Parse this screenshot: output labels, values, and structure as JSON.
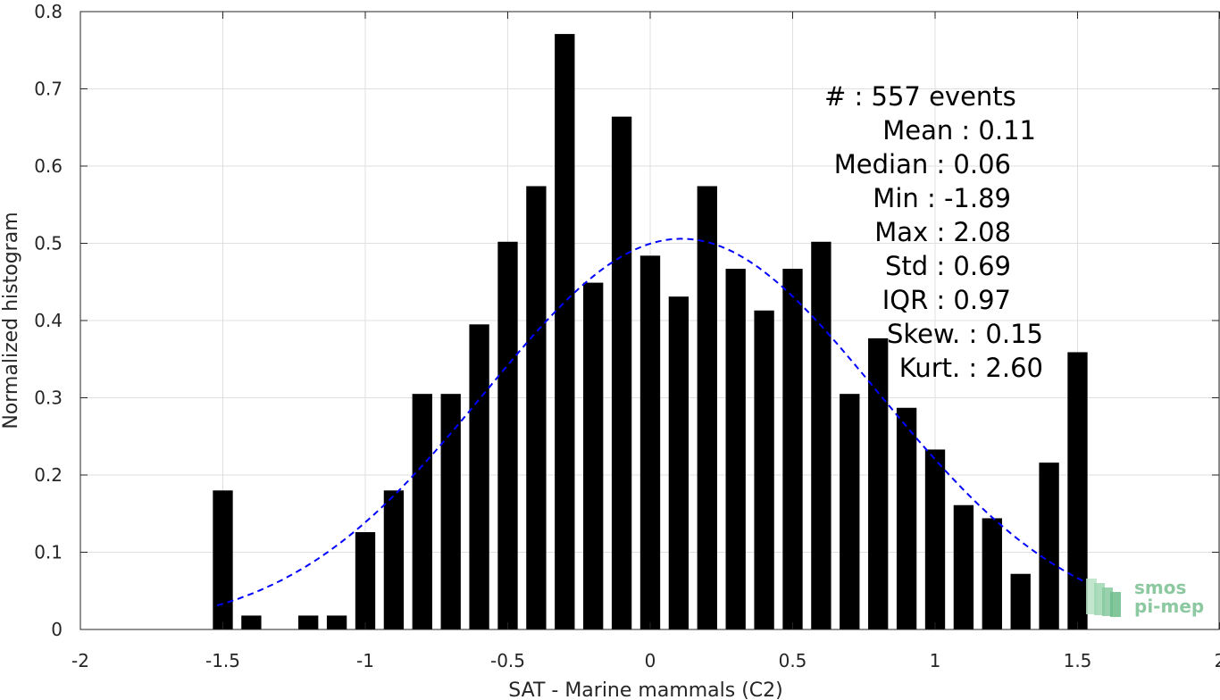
{
  "chart_data": {
    "type": "bar",
    "xlabel": "SAT - Marine mammals (C2)",
    "ylabel": "Normalized histogram",
    "xlim": [
      -2,
      2
    ],
    "ylim": [
      0,
      0.8
    ],
    "grid": true,
    "x_ticks": [
      -2,
      -1.5,
      -1,
      -0.5,
      0,
      0.5,
      1,
      1.5,
      2
    ],
    "x_tick_labels": [
      "-2",
      "-1.5",
      "-1",
      "-0.5",
      "0",
      "0.5",
      "1",
      "1.5",
      "2"
    ],
    "y_ticks": [
      0,
      0.1,
      0.2,
      0.3,
      0.4,
      0.5,
      0.6,
      0.7,
      0.8
    ],
    "y_tick_labels": [
      "0",
      "0.1",
      "0.2",
      "0.3",
      "0.4",
      "0.5",
      "0.6",
      "0.7",
      "0.8"
    ],
    "bar_color": "#000000",
    "bar_width": 0.07,
    "bars": {
      "x": [
        -1.5,
        -1.4,
        -1.3,
        -1.2,
        -1.1,
        -1.0,
        -0.9,
        -0.8,
        -0.7,
        -0.6,
        -0.5,
        -0.4,
        -0.3,
        -0.2,
        -0.1,
        0.0,
        0.1,
        0.2,
        0.3,
        0.4,
        0.5,
        0.6,
        0.7,
        0.8,
        0.9,
        1.0,
        1.1,
        1.2,
        1.3,
        1.4,
        1.5
      ],
      "values": [
        0.18,
        0.018,
        0.0,
        0.018,
        0.018,
        0.126,
        0.18,
        0.305,
        0.305,
        0.395,
        0.502,
        0.574,
        0.771,
        0.449,
        0.664,
        0.484,
        0.431,
        0.574,
        0.467,
        0.413,
        0.467,
        0.502,
        0.305,
        0.377,
        0.287,
        0.233,
        0.161,
        0.144,
        0.072,
        0.216,
        0.359
      ]
    },
    "fit_curve": {
      "style": "dashed",
      "color": "#0000ff",
      "mean": 0.11,
      "std": 0.69,
      "x_range": [
        -1.52,
        1.52
      ]
    },
    "stats": {
      "count_label": "#",
      "count_value": "557 events",
      "rows": [
        {
          "label": "Mean",
          "value": "0.11"
        },
        {
          "label": "Median",
          "value": "0.06"
        },
        {
          "label": "Min",
          "value": "-1.89"
        },
        {
          "label": "Max",
          "value": "2.08"
        },
        {
          "label": "Std",
          "value": "0.69"
        },
        {
          "label": "IQR",
          "value": "0.97"
        },
        {
          "label": "Skew.",
          "value": "0.15"
        },
        {
          "label": "Kurt.",
          "value": "2.60"
        }
      ]
    },
    "logo": {
      "line1": "smos",
      "line2": "pi-mep",
      "color": "#8cc8a0"
    }
  }
}
